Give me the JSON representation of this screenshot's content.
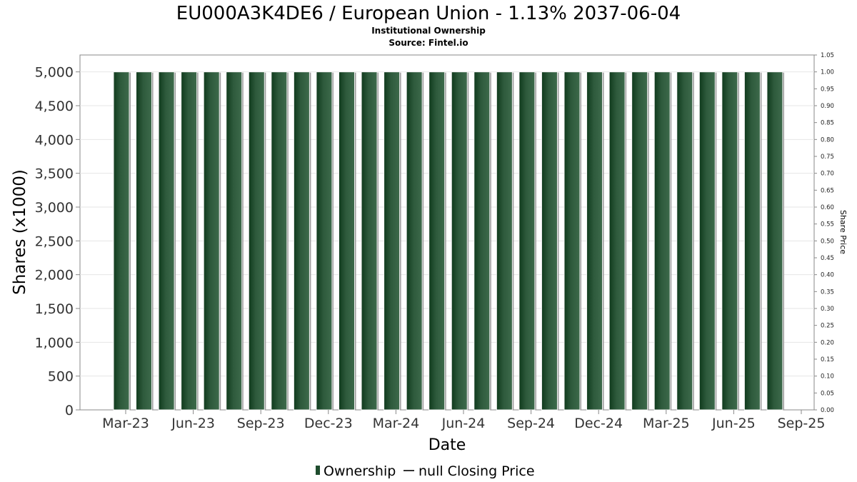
{
  "chart_data": {
    "type": "bar",
    "title": "EU000A3K4DE6 / European Union - 1.13% 2037-06-04",
    "subtitle": "Institutional Ownership",
    "source": "Source: Fintel.io",
    "xlabel": "Date",
    "ylabel": "Shares (x1000)",
    "y2label": "Share Price",
    "ylim": [
      0,
      5250
    ],
    "y2lim": [
      0,
      1.05
    ],
    "yticks": [
      "0",
      "500",
      "1,000",
      "1,500",
      "2,000",
      "2,500",
      "3,000",
      "3,500",
      "4,000",
      "4,500",
      "5,000"
    ],
    "y2ticks": [
      "0.00",
      "0.05",
      "0.10",
      "0.15",
      "0.20",
      "0.25",
      "0.30",
      "0.35",
      "0.40",
      "0.45",
      "0.50",
      "0.55",
      "0.60",
      "0.65",
      "0.70",
      "0.75",
      "0.80",
      "0.85",
      "0.90",
      "0.95",
      "1.00",
      "1.05"
    ],
    "xticks": [
      "Mar-23",
      "Jun-23",
      "Sep-23",
      "Dec-23",
      "Mar-24",
      "Jun-24",
      "Sep-24",
      "Dec-24",
      "Mar-25",
      "Jun-25",
      "Sep-25"
    ],
    "grid": true,
    "legend_position": "bottom",
    "series": [
      {
        "name": "Ownership",
        "color": "#1f4d2e",
        "values": [
          5000,
          5000,
          5000,
          5000,
          5000,
          5000,
          5000,
          5000,
          5000,
          5000,
          5000,
          5000,
          5000,
          5000,
          5000,
          5000,
          5000,
          5000,
          5000,
          5000,
          5000,
          5000,
          5000,
          5000,
          5000,
          5000,
          5000,
          5000,
          5000,
          5000
        ]
      },
      {
        "name": "null Closing Price",
        "color": "#333333",
        "values": []
      }
    ]
  }
}
